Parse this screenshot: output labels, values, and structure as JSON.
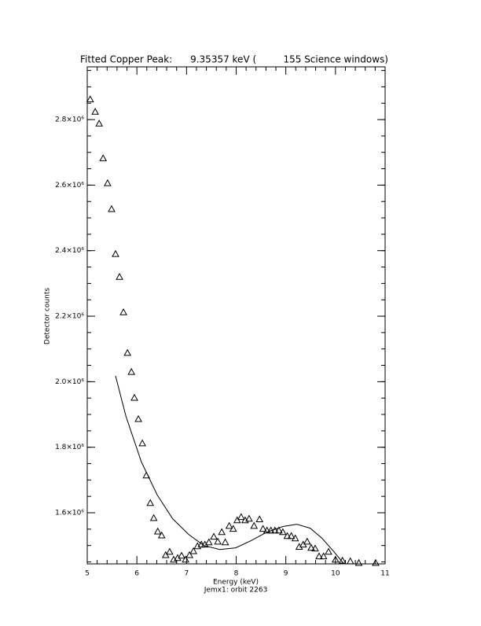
{
  "chart_data": {
    "type": "scatter",
    "title": "Fitted Copper Peak:      9.35357 keV (         155 Science windows)",
    "x_label": "Energy (keV)",
    "subtitle": "Jemx1: orbit 2263",
    "y_label": "Detector counts",
    "xlim": [
      5,
      11
    ],
    "ylim": [
      1444000,
      2961000
    ],
    "xticks": [
      5,
      6,
      7,
      8,
      9,
      10,
      11
    ],
    "yticks": [
      {
        "value": 1600000,
        "label": "1.6×10⁶"
      },
      {
        "value": 1800000,
        "label": "1.8×10⁶"
      },
      {
        "value": 2000000,
        "label": "2.0×10⁶"
      },
      {
        "value": 2200000,
        "label": "2.2×10⁶"
      },
      {
        "value": 2400000,
        "label": "2.4×10⁶"
      },
      {
        "value": 2600000,
        "label": "2.6×10⁶"
      },
      {
        "value": 2800000,
        "label": "2.8×10⁶"
      }
    ],
    "x_minor_intervals": 5,
    "y_minor_intervals": 4,
    "grid": false,
    "series": [
      {
        "style": "triangles",
        "color": "#000000",
        "x": [
          5.06,
          5.16,
          5.24,
          5.32,
          5.41,
          5.49,
          5.57,
          5.65,
          5.73,
          5.81,
          5.89,
          5.95,
          6.03,
          6.11,
          6.19,
          6.27,
          6.34,
          6.42,
          6.5,
          6.58,
          6.66,
          6.74,
          6.82,
          6.9,
          6.98,
          7.06,
          7.14,
          7.22,
          7.3,
          7.37,
          7.45,
          7.55,
          7.63,
          7.71,
          7.78,
          7.86,
          7.94,
          8.02,
          8.1,
          8.18,
          8.26,
          8.36,
          8.47,
          8.54,
          8.62,
          8.7,
          8.78,
          8.86,
          8.94,
          9.03,
          9.11,
          9.19,
          9.27,
          9.35,
          9.43,
          9.51,
          9.59,
          9.67,
          9.76,
          9.86,
          10.0,
          10.14,
          10.3,
          10.47,
          10.81
        ],
        "values": [
          2862000,
          2824000,
          2788000,
          2682000,
          2606000,
          2527000,
          2390000,
          2320000,
          2212000,
          2088000,
          2030000,
          1951000,
          1886000,
          1812000,
          1714000,
          1630000,
          1584000,
          1543000,
          1531000,
          1471000,
          1481000,
          1457000,
          1462000,
          1469000,
          1457000,
          1471000,
          1483000,
          1498000,
          1503000,
          1503000,
          1510000,
          1527000,
          1512000,
          1541000,
          1510000,
          1560000,
          1551000,
          1577000,
          1587000,
          1577000,
          1582000,
          1560000,
          1580000,
          1551000,
          1546000,
          1546000,
          1546000,
          1546000,
          1541000,
          1529000,
          1529000,
          1522000,
          1496000,
          1503000,
          1512000,
          1493000,
          1491000,
          1467000,
          1467000,
          1481000,
          1457000,
          1454000,
          1452000,
          1447000,
          1447000
        ]
      },
      {
        "style": "line",
        "color": "#000000",
        "x": [
          5.57,
          5.78,
          6.09,
          6.41,
          6.72,
          7.04,
          7.35,
          7.67,
          7.99,
          8.3,
          8.62,
          8.94,
          9.22,
          9.49,
          9.73,
          9.97,
          10.17
        ],
        "values": [
          2018000,
          1894000,
          1755000,
          1654000,
          1582000,
          1534000,
          1500000,
          1488000,
          1493000,
          1515000,
          1541000,
          1558000,
          1565000,
          1553000,
          1522000,
          1481000,
          1444000
        ]
      }
    ]
  }
}
